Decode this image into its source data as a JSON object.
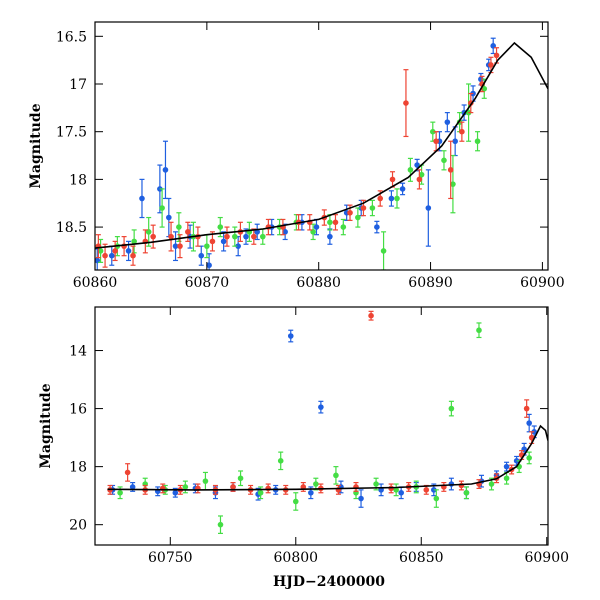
{
  "chart_data": [
    {
      "type": "scatter",
      "xlabel": "",
      "ylabel": "Magnitude",
      "xlim": [
        60860,
        60900.5
      ],
      "ylim": [
        18.95,
        16.35
      ],
      "y_inverted": true,
      "xticks": [
        60860,
        60870,
        60880,
        60890,
        60900
      ],
      "yticks": [
        16.5,
        17,
        17.5,
        18,
        18.5
      ],
      "ytick_labels": [
        "16.5",
        "17",
        "17.5",
        "18",
        "18.5"
      ],
      "colors": {
        "blue": "#1f5fe0",
        "green": "#44dd44",
        "red": "#ee4433"
      },
      "model_curve": {
        "x": [
          60860,
          60865,
          60870,
          60875,
          60880,
          60884,
          60888,
          60891,
          60894,
          60896,
          60897.5,
          60899,
          60900.5
        ],
        "y": [
          18.72,
          18.66,
          18.58,
          18.52,
          18.42,
          18.25,
          17.98,
          17.65,
          17.15,
          16.75,
          16.57,
          16.72,
          17.05
        ]
      },
      "series": [
        {
          "color": "blue",
          "x": [
            60860.2,
            60861.5,
            60863.0,
            60864.2,
            60865.8,
            60866.3,
            60866.6,
            60867.2,
            60868.5,
            60869.5,
            60870.2,
            60871.5,
            60872.8,
            60873.5,
            60874.5,
            60875.8,
            60877.0,
            60878.5,
            60879.8,
            60881.0,
            60882.5,
            60883.8,
            60885.2,
            60886.5,
            60887.5,
            60888.8,
            60889.8,
            60890.8,
            60891.5,
            60892.2,
            60893.0,
            60893.8,
            60894.5,
            60895.2,
            60895.6
          ],
          "y": [
            18.85,
            18.8,
            18.75,
            18.2,
            18.1,
            17.9,
            18.4,
            18.7,
            18.6,
            18.8,
            18.9,
            18.65,
            18.7,
            18.6,
            18.55,
            18.5,
            18.55,
            18.45,
            18.5,
            18.6,
            18.35,
            18.3,
            18.5,
            18.2,
            18.1,
            17.85,
            18.3,
            17.6,
            17.4,
            17.6,
            17.3,
            17.1,
            16.95,
            16.8,
            16.6
          ],
          "err": [
            0.12,
            0.1,
            0.1,
            0.2,
            0.25,
            0.3,
            0.2,
            0.15,
            0.12,
            0.1,
            0.12,
            0.1,
            0.1,
            0.08,
            0.08,
            0.08,
            0.08,
            0.08,
            0.08,
            0.08,
            0.08,
            0.08,
            0.06,
            0.08,
            0.06,
            0.06,
            0.4,
            0.1,
            0.1,
            0.15,
            0.08,
            0.08,
            0.06,
            0.06,
            0.08
          ]
        },
        {
          "color": "green",
          "x": [
            60860.5,
            60862.0,
            60863.5,
            60864.8,
            60866.0,
            60867.5,
            60868.8,
            60870.0,
            60871.2,
            60872.5,
            60873.8,
            60875.0,
            60876.5,
            60878.0,
            60879.5,
            60881.0,
            60882.2,
            60883.5,
            60884.8,
            60885.8,
            60887.0,
            60888.2,
            60889.2,
            60890.2,
            60891.2,
            60892.0,
            60892.6,
            60893.4,
            60894.2,
            60894.8
          ],
          "y": [
            18.75,
            18.7,
            18.65,
            18.55,
            18.3,
            18.5,
            18.6,
            18.7,
            18.5,
            18.6,
            18.55,
            18.6,
            18.5,
            18.45,
            18.55,
            18.45,
            18.5,
            18.4,
            18.3,
            18.75,
            18.2,
            17.9,
            17.95,
            17.5,
            17.8,
            18.05,
            17.4,
            17.3,
            17.6,
            17.05
          ],
          "err": [
            0.12,
            0.1,
            0.12,
            0.15,
            0.2,
            0.15,
            0.15,
            0.12,
            0.1,
            0.1,
            0.1,
            0.08,
            0.08,
            0.08,
            0.08,
            0.08,
            0.08,
            0.1,
            0.08,
            0.2,
            0.1,
            0.12,
            0.1,
            0.1,
            0.1,
            0.3,
            0.1,
            0.3,
            0.1,
            0.1
          ]
        },
        {
          "color": "red",
          "x": [
            60860.3,
            60860.9,
            60861.8,
            60862.6,
            60863.4,
            60864.5,
            60865.2,
            60866.8,
            60867.6,
            60868.3,
            60869.2,
            60870.5,
            60871.8,
            60873.0,
            60874.2,
            60875.5,
            60876.8,
            60878.2,
            60879.2,
            60880.5,
            60881.5,
            60882.8,
            60884.0,
            60885.5,
            60886.6,
            60887.8,
            60889.0,
            60890.5,
            60891.8,
            60892.8,
            60893.6,
            60894.6,
            60895.4,
            60895.9
          ],
          "y": [
            18.7,
            18.8,
            18.75,
            18.7,
            18.8,
            18.65,
            18.6,
            18.6,
            18.7,
            18.55,
            18.6,
            18.65,
            18.6,
            18.55,
            18.6,
            18.5,
            18.5,
            18.45,
            18.45,
            18.4,
            18.45,
            18.35,
            18.3,
            18.2,
            18.0,
            17.2,
            18.0,
            17.6,
            17.9,
            17.5,
            17.2,
            17.0,
            16.8,
            16.7
          ],
          "err": [
            0.12,
            0.12,
            0.1,
            0.1,
            0.1,
            0.12,
            0.12,
            0.15,
            0.12,
            0.1,
            0.1,
            0.1,
            0.1,
            0.1,
            0.08,
            0.08,
            0.08,
            0.08,
            0.08,
            0.08,
            0.08,
            0.08,
            0.08,
            0.08,
            0.08,
            0.35,
            0.1,
            0.1,
            0.3,
            0.1,
            0.1,
            0.08,
            0.08,
            0.08
          ]
        }
      ]
    },
    {
      "type": "scatter",
      "xlabel": "HJD−2400000",
      "ylabel": "Magnitude",
      "xlim": [
        60720,
        60900.5
      ],
      "ylim": [
        20.7,
        12.5
      ],
      "y_inverted": true,
      "xticks": [
        60750,
        60800,
        60850,
        60900
      ],
      "yticks": [
        14,
        16,
        18,
        20
      ],
      "ytick_labels": [
        "14",
        "16",
        "18",
        "20"
      ],
      "colors": {
        "blue": "#1f5fe0",
        "green": "#44dd44",
        "red": "#ee4433"
      },
      "model_curve": {
        "x": [
          60725,
          60760,
          60800,
          60840,
          60870,
          60880,
          60888,
          60894,
          60897.5,
          60899.5,
          60900.5
        ],
        "y": [
          18.78,
          18.8,
          18.78,
          18.72,
          18.6,
          18.42,
          18.0,
          17.2,
          16.6,
          16.75,
          17.1
        ]
      },
      "series": [
        {
          "color": "blue",
          "x": [
            60727,
            60735,
            60745,
            60752,
            60760,
            60768,
            60775,
            60785,
            60792,
            60798,
            60806,
            60810,
            60818,
            60826,
            60834,
            60842,
            60848,
            60855,
            60862,
            60868,
            60874,
            60880,
            60884,
            60888,
            60891,
            60893,
            60895
          ],
          "y": [
            18.8,
            18.7,
            18.85,
            18.9,
            18.75,
            18.9,
            18.7,
            18.95,
            18.8,
            13.5,
            18.9,
            15.95,
            18.7,
            19.1,
            18.8,
            18.9,
            18.7,
            18.8,
            18.6,
            18.9,
            18.5,
            18.3,
            18.0,
            17.8,
            17.4,
            16.5,
            16.8
          ],
          "err": [
            0.15,
            0.15,
            0.15,
            0.15,
            0.15,
            0.2,
            0.15,
            0.2,
            0.15,
            0.2,
            0.2,
            0.2,
            0.2,
            0.3,
            0.2,
            0.2,
            0.15,
            0.2,
            0.2,
            0.2,
            0.2,
            0.15,
            0.15,
            0.15,
            0.2,
            0.3,
            0.2
          ]
        },
        {
          "color": "green",
          "x": [
            60730,
            60740,
            60748,
            60756,
            60764,
            60770,
            60778,
            60786,
            60794,
            60800,
            60808,
            60816,
            60824,
            60832,
            60840,
            60848,
            60856,
            60862,
            60868,
            60873,
            60878,
            60884,
            60889,
            60893
          ],
          "y": [
            18.9,
            18.6,
            18.8,
            18.7,
            18.5,
            20.0,
            18.4,
            18.9,
            17.8,
            19.2,
            18.6,
            18.3,
            18.9,
            18.6,
            18.8,
            18.7,
            19.1,
            16.0,
            18.9,
            13.3,
            18.6,
            18.4,
            18.0,
            17.7
          ],
          "err": [
            0.2,
            0.2,
            0.15,
            0.2,
            0.3,
            0.3,
            0.25,
            0.2,
            0.3,
            0.3,
            0.2,
            0.3,
            0.2,
            0.2,
            0.2,
            0.2,
            0.3,
            0.25,
            0.2,
            0.25,
            0.2,
            0.2,
            0.2,
            0.2
          ]
        },
        {
          "color": "red",
          "x": [
            60726,
            60733,
            60740,
            60747,
            60754,
            60761,
            60768,
            60775,
            60782,
            60789,
            60796,
            60803,
            60810,
            60817,
            60824,
            60830,
            60838,
            60845,
            60852,
            60859,
            60866,
            60873,
            60880,
            60886,
            60890,
            60892,
            60894
          ],
          "y": [
            18.8,
            18.2,
            18.8,
            18.75,
            18.8,
            18.75,
            18.8,
            18.7,
            18.8,
            18.75,
            18.8,
            18.7,
            18.75,
            18.8,
            18.7,
            12.8,
            18.75,
            18.7,
            18.8,
            18.7,
            18.65,
            18.6,
            18.4,
            18.1,
            17.6,
            16.0,
            17.0
          ],
          "err": [
            0.15,
            0.3,
            0.15,
            0.15,
            0.15,
            0.15,
            0.15,
            0.15,
            0.15,
            0.15,
            0.15,
            0.15,
            0.15,
            0.15,
            0.15,
            0.15,
            0.15,
            0.15,
            0.15,
            0.15,
            0.15,
            0.15,
            0.15,
            0.15,
            0.15,
            0.3,
            0.2
          ]
        }
      ]
    }
  ]
}
